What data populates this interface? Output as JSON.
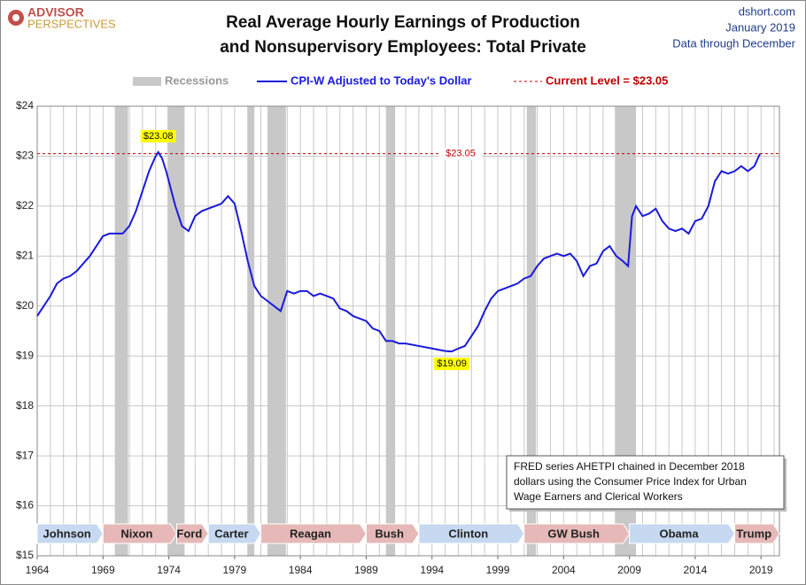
{
  "chart_data": {
    "type": "line",
    "title": [
      "Real Average Hourly Earnings of Production",
      "and Nonsupervisory Employees: Total Private"
    ],
    "logo": [
      "ADVISOR",
      "PERSPECTIVES"
    ],
    "source": "dshort.com",
    "date": "January 2019",
    "data_note": "Data through December",
    "x": [
      1964,
      1964.5,
      1965,
      1965.5,
      1966,
      1966.5,
      1967,
      1967.5,
      1968,
      1968.5,
      1969,
      1969.5,
      1970,
      1970.5,
      1971,
      1971.5,
      1972,
      1972.5,
      1973,
      1973.2,
      1973.5,
      1973.8,
      1974.2,
      1974.5,
      1975,
      1975.5,
      1976,
      1976.5,
      1977,
      1977.5,
      1978,
      1978.5,
      1979,
      1979.5,
      1980,
      1980.5,
      1981,
      1981.5,
      1982,
      1982.5,
      1983,
      1983.5,
      1984,
      1984.5,
      1985,
      1985.5,
      1986,
      1986.5,
      1987,
      1987.5,
      1988,
      1988.5,
      1989,
      1989.5,
      1990,
      1990.5,
      1991,
      1991.5,
      1992,
      1993,
      1994,
      1995,
      1995.5,
      1996,
      1996.5,
      1997,
      1997.5,
      1998,
      1998.5,
      1999,
      1999.5,
      2000,
      2000.5,
      2001,
      2001.5,
      2002,
      2002.5,
      2003,
      2003.5,
      2004,
      2004.5,
      2005,
      2005.5,
      2006,
      2006.5,
      2007,
      2007.5,
      2008,
      2008.5,
      2008.9,
      2009.2,
      2009.5,
      2010,
      2010.5,
      2011,
      2011.5,
      2012,
      2012.5,
      2013,
      2013.5,
      2014,
      2014.5,
      2015,
      2015.5,
      2016,
      2016.5,
      2017,
      2017.5,
      2018,
      2018.5,
      2018.92
    ],
    "series": [
      {
        "name": "CPI-W Adjusted to Today's Dollar",
        "color": "#1a1adb",
        "values": [
          19.8,
          20.0,
          20.2,
          20.45,
          20.55,
          20.6,
          20.7,
          20.85,
          21.0,
          21.2,
          21.4,
          21.45,
          21.45,
          21.45,
          21.6,
          21.9,
          22.3,
          22.7,
          23.0,
          23.08,
          22.95,
          22.7,
          22.3,
          22.0,
          21.6,
          21.5,
          21.8,
          21.9,
          21.95,
          22.0,
          22.05,
          22.2,
          22.05,
          21.5,
          20.9,
          20.4,
          20.2,
          20.1,
          20.0,
          19.9,
          20.3,
          20.25,
          20.3,
          20.3,
          20.2,
          20.25,
          20.2,
          20.15,
          19.95,
          19.9,
          19.8,
          19.75,
          19.7,
          19.55,
          19.5,
          19.3,
          19.3,
          19.25,
          19.25,
          19.2,
          19.15,
          19.1,
          19.09,
          19.15,
          19.2,
          19.4,
          19.6,
          19.9,
          20.15,
          20.3,
          20.35,
          20.4,
          20.45,
          20.55,
          20.6,
          20.8,
          20.95,
          21.0,
          21.05,
          21.0,
          21.05,
          20.9,
          20.6,
          20.8,
          20.85,
          21.1,
          21.2,
          21.0,
          20.9,
          20.8,
          21.8,
          22.0,
          21.8,
          21.85,
          21.95,
          21.7,
          21.55,
          21.5,
          21.55,
          21.45,
          21.7,
          21.75,
          22.0,
          22.5,
          22.7,
          22.65,
          22.7,
          22.8,
          22.7,
          22.8,
          23.05
        ]
      }
    ],
    "xlim": [
      1964,
      2020.4
    ],
    "xticks": [
      1964,
      1969,
      1974,
      1979,
      1984,
      1989,
      1994,
      1999,
      2004,
      2009,
      2014,
      2019
    ],
    "x_minor_step": 1,
    "ylim": [
      15,
      24
    ],
    "yticks": [
      {
        "value": 15,
        "label": "$15"
      },
      {
        "value": 16,
        "label": "$16"
      },
      {
        "value": 17,
        "label": "$17"
      },
      {
        "value": 18,
        "label": "$18"
      },
      {
        "value": 19,
        "label": "$19"
      },
      {
        "value": 20,
        "label": "$20"
      },
      {
        "value": 21,
        "label": "$21"
      },
      {
        "value": 22,
        "label": "$22"
      },
      {
        "value": 23,
        "label": "$23"
      },
      {
        "value": 24,
        "label": "$24"
      }
    ],
    "grid": true,
    "recessions": {
      "name": "Recessions",
      "color": "#c8c8c8",
      "periods": [
        [
          1969.9,
          1970.9
        ],
        [
          1973.9,
          1975.2
        ],
        [
          1980.0,
          1980.5
        ],
        [
          1981.5,
          1982.9
        ],
        [
          1990.5,
          1991.2
        ],
        [
          2001.2,
          2001.9
        ],
        [
          2007.9,
          2009.5
        ]
      ]
    },
    "reference": {
      "name": "Current Level = $23.05",
      "value": 23.05,
      "value_label": "$23.05",
      "color": "#c00000"
    },
    "annotations": [
      {
        "text": "$23.08",
        "x": 1973.2,
        "y": 23.08,
        "position": "above"
      },
      {
        "text": "$19.09",
        "x": 1995.5,
        "y": 19.09,
        "position": "below"
      }
    ],
    "presidents": [
      {
        "name": "Johnson",
        "start": 1964,
        "end": 1969,
        "color": "#c6d9f1"
      },
      {
        "name": "Nixon",
        "start": 1969,
        "end": 1974.6,
        "color": "#e6b9b8"
      },
      {
        "name": "Ford",
        "start": 1974.6,
        "end": 1977,
        "color": "#e6b9b8"
      },
      {
        "name": "Carter",
        "start": 1977,
        "end": 1981,
        "color": "#c6d9f1"
      },
      {
        "name": "Reagan",
        "start": 1981,
        "end": 1989,
        "color": "#e6b9b8"
      },
      {
        "name": "Bush",
        "start": 1989,
        "end": 1993,
        "color": "#e6b9b8"
      },
      {
        "name": "Clinton",
        "start": 1993,
        "end": 2001,
        "color": "#c6d9f1"
      },
      {
        "name": "GW Bush",
        "start": 2001,
        "end": 2009,
        "color": "#e6b9b8"
      },
      {
        "name": "Obama",
        "start": 2009,
        "end": 2017,
        "color": "#c6d9f1"
      },
      {
        "name": "Trump",
        "start": 2017,
        "end": 2020.4,
        "color": "#e6b9b8"
      }
    ],
    "note": [
      "FRED series AHETPI chained in December 2018",
      "dollars using the Consumer Price Index for Urban",
      "Wage Earners and Clerical Workers"
    ]
  }
}
